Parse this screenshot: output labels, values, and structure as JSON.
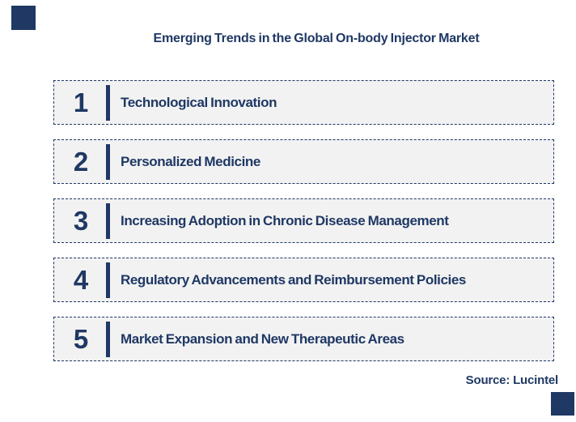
{
  "title": "Emerging Trends in the Global On-body Injector Market",
  "source_label": "Source: Lucintel",
  "colors": {
    "navy": "#1f3864",
    "box_fill": "#f2f2f2",
    "background": "#ffffff"
  },
  "trends": [
    {
      "number": "1",
      "label": "Technological Innovation"
    },
    {
      "number": "2",
      "label": "Personalized Medicine"
    },
    {
      "number": "3",
      "label": "Increasing Adoption in Chronic Disease Management"
    },
    {
      "number": "4",
      "label": "Regulatory Advancements and Reimbursement Policies"
    },
    {
      "number": "5",
      "label": "Market Expansion and New Therapeutic Areas"
    }
  ]
}
